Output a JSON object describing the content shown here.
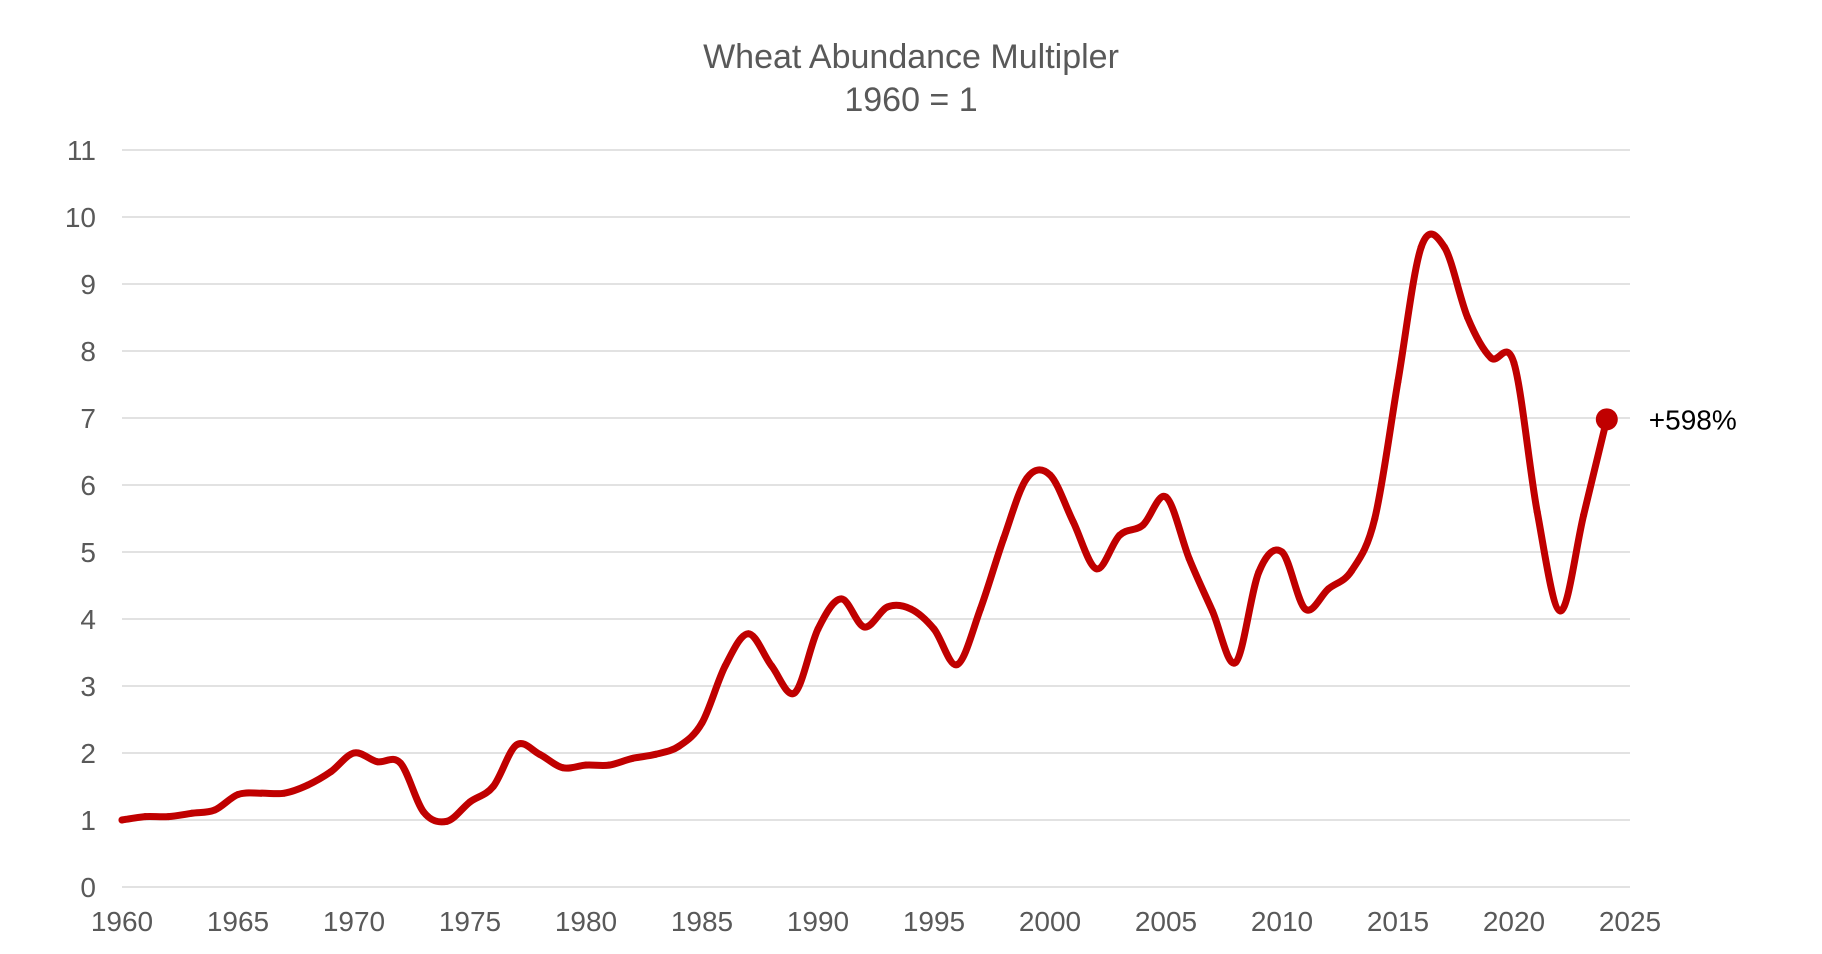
{
  "chart_data": {
    "type": "line",
    "title": "Wheat Abundance Multipler",
    "subtitle": "1960 = 1",
    "xlabel": "",
    "ylabel": "",
    "xlim": [
      1960,
      2025
    ],
    "ylim": [
      0,
      11
    ],
    "x_ticks": [
      "1960",
      "1965",
      "1970",
      "1975",
      "1980",
      "1985",
      "1990",
      "1995",
      "2000",
      "2005",
      "2010",
      "2015",
      "2020",
      "2025"
    ],
    "y_ticks": [
      "0",
      "1",
      "2",
      "3",
      "4",
      "5",
      "6",
      "7",
      "8",
      "9",
      "10",
      "11"
    ],
    "grid": true,
    "series": [
      {
        "name": "Wheat Abundance Multipler",
        "color": "#c00000",
        "x": [
          1960,
          1961,
          1962,
          1963,
          1964,
          1965,
          1966,
          1967,
          1968,
          1969,
          1970,
          1971,
          1972,
          1973,
          1974,
          1975,
          1976,
          1977,
          1978,
          1979,
          1980,
          1981,
          1982,
          1983,
          1984,
          1985,
          1986,
          1987,
          1988,
          1989,
          1990,
          1991,
          1992,
          1993,
          1994,
          1995,
          1996,
          1997,
          1998,
          1999,
          2000,
          2001,
          2002,
          2003,
          2004,
          2005,
          2006,
          2007,
          2008,
          2009,
          2010,
          2011,
          2012,
          2013,
          2014,
          2015,
          2016,
          2017,
          2018,
          2019,
          2020,
          2021,
          2022,
          2023,
          2024
        ],
        "values": [
          1.0,
          1.05,
          1.05,
          1.1,
          1.15,
          1.38,
          1.4,
          1.4,
          1.52,
          1.72,
          2.0,
          1.87,
          1.85,
          1.12,
          0.98,
          1.27,
          1.5,
          2.12,
          1.98,
          1.78,
          1.82,
          1.82,
          1.92,
          1.98,
          2.1,
          2.45,
          3.3,
          3.78,
          3.3,
          2.9,
          3.85,
          4.3,
          3.88,
          4.18,
          4.15,
          3.85,
          3.32,
          4.15,
          5.2,
          6.1,
          6.15,
          5.45,
          4.75,
          5.25,
          5.4,
          5.82,
          4.9,
          4.12,
          3.35,
          4.7,
          5.0,
          4.15,
          4.45,
          4.72,
          5.5,
          7.55,
          9.55,
          9.55,
          8.5,
          7.9,
          7.82,
          5.6,
          4.12,
          5.55,
          6.98
        ]
      }
    ],
    "annotations": [
      {
        "x": 2024,
        "y": 6.98,
        "text": "+598%"
      }
    ]
  }
}
